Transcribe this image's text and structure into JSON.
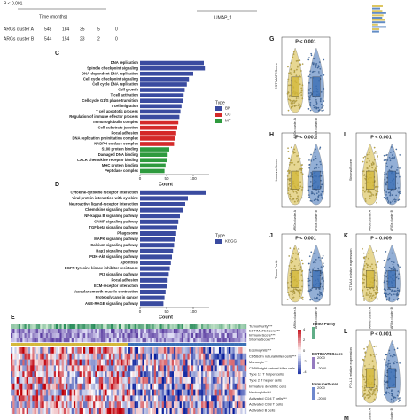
{
  "chart_data": [
    {
      "type": "bar",
      "orientation": "horizontal",
      "panel": "C",
      "xlabel": "Count",
      "legend_title": "Type",
      "xlim": [
        0,
        130
      ],
      "xticks": [
        0,
        50,
        100
      ],
      "series": [
        {
          "name": "BP",
          "color": "#3a4ba0",
          "categories": [
            "DNA replication",
            "Spindle checkpoint signaling",
            "DNA-dependent DNA replication",
            "Cell cycle checkpoint signaling",
            "Cell cycle DNA replication",
            "Cell growth",
            "T cell activation",
            "Cell cycle G1/S phase transition",
            "T cell migration",
            "T cell apoptotic process",
            "Regulation of immune effector process"
          ],
          "values": [
            120,
            122,
            100,
            92,
            88,
            84,
            82,
            80,
            78,
            76,
            74
          ]
        },
        {
          "name": "CC",
          "color": "#d42a2a",
          "categories": [
            "Immunoglobulin complex",
            "Cell-substrate junction",
            "Focal adhesion",
            "DNA replication preinitiation complex",
            "NADPH oxidase complex"
          ],
          "values": [
            72,
            70,
            68,
            66,
            64
          ]
        },
        {
          "name": "MF",
          "color": "#2e9a3e",
          "categories": [
            "S100 protein binding",
            "Damaged DNA binding",
            "CXCR chemokine receptor binding",
            "MHC protein binding",
            "Peptidase complex"
          ],
          "values": [
            55,
            52,
            50,
            48,
            46
          ]
        }
      ]
    },
    {
      "type": "bar",
      "orientation": "horizontal",
      "panel": "D",
      "xlabel": "Count",
      "legend_title": "Type",
      "xlim": [
        0,
        130
      ],
      "xticks": [
        0,
        50,
        100
      ],
      "series": [
        {
          "name": "KEGG",
          "color": "#3a4ba0",
          "categories": [
            "Cytokine-cytokine receptor interaction",
            "Viral protein interaction with cytokine",
            "Neuroactive ligand-receptor interaction",
            "Chemokine signaling pathway",
            "NF-kappa B signaling pathway",
            "CAMP signaling pathway",
            "TGF beta signaling pathway",
            "Phagosome",
            "MAPK signaling pathway",
            "Calcium signaling pathway",
            "Rap1 signaling pathway",
            "PI3K-Akt signaling pathway",
            "Apoptosis",
            "EGFR tyrosine kinase inhibitor resistance",
            "PI3 signaling pathway",
            "Focal adhesion",
            "ECM-receptor interaction",
            "Vascular smooth muscle contraction",
            "Proteoglycans in cancer",
            "AGE-RAGE signaling pathway"
          ],
          "values": [
            125,
            90,
            85,
            80,
            75,
            72,
            70,
            68,
            66,
            64,
            62,
            60,
            58,
            56,
            54,
            52,
            50,
            48,
            46,
            44
          ]
        }
      ]
    }
  ],
  "top": {
    "pvalue": "P < 0.001",
    "xlabel": "Time (months)",
    "umap": "UMAP_1",
    "risk_rows": [
      {
        "name": "ARGs cluster A",
        "counts": [
          "548",
          "184",
          "35",
          "5",
          "0"
        ]
      },
      {
        "name": "ARGs cluster B",
        "counts": [
          "544",
          "154",
          "23",
          "2",
          "0"
        ]
      }
    ]
  },
  "violins": {
    "groups": [
      "ARGs cluster A",
      "ARGs cluster B"
    ],
    "panels": [
      {
        "letter": "G",
        "pvalue": "P < 0.001",
        "ylabel": "ESTIMATEScore"
      },
      {
        "letter": "H",
        "pvalue": "P < 0.001",
        "ylabel": "ImmuneScore"
      },
      {
        "letter": "I",
        "pvalue": "P < 0.001",
        "ylabel": "StromalScore"
      },
      {
        "letter": "J",
        "pvalue": "P < 0.001",
        "ylabel": "TumorPurity"
      },
      {
        "letter": "K",
        "pvalue": "P = 0.009",
        "ylabel": "CTLA4 relative expression"
      },
      {
        "letter": "L",
        "pvalue": "P < 0.001",
        "ylabel": "PD-L1 relative expression"
      }
    ],
    "next_letter": "M"
  },
  "heatmap": {
    "letter": "E",
    "rows": [
      "TumorPurity***",
      "ESTIMATEScore***",
      "ImmuneScore***",
      "StromalScore***",
      "Eosinophils***",
      "CD56dim natural killer cells***",
      "Monocyte***",
      "CD56bright natural killer cells",
      "Type 17 T helper cells",
      "Type 2 T helper cells",
      "Immature dendritic cells",
      "Neutrophils***",
      "Activated CD4 T cells***",
      "Activated CD8 T cells",
      "Activated B cells"
    ],
    "colorbar": [
      "4",
      "2",
      "0",
      "-2",
      "-4"
    ],
    "legends": [
      {
        "title": "TumorPurity",
        "labels": []
      },
      {
        "title": "ESTIMATEScore",
        "labels": [
          "2000",
          "0",
          "-2000"
        ]
      },
      {
        "title": "ImmuneScore",
        "labels": [
          "2000",
          "0",
          "-2000"
        ]
      }
    ]
  }
}
